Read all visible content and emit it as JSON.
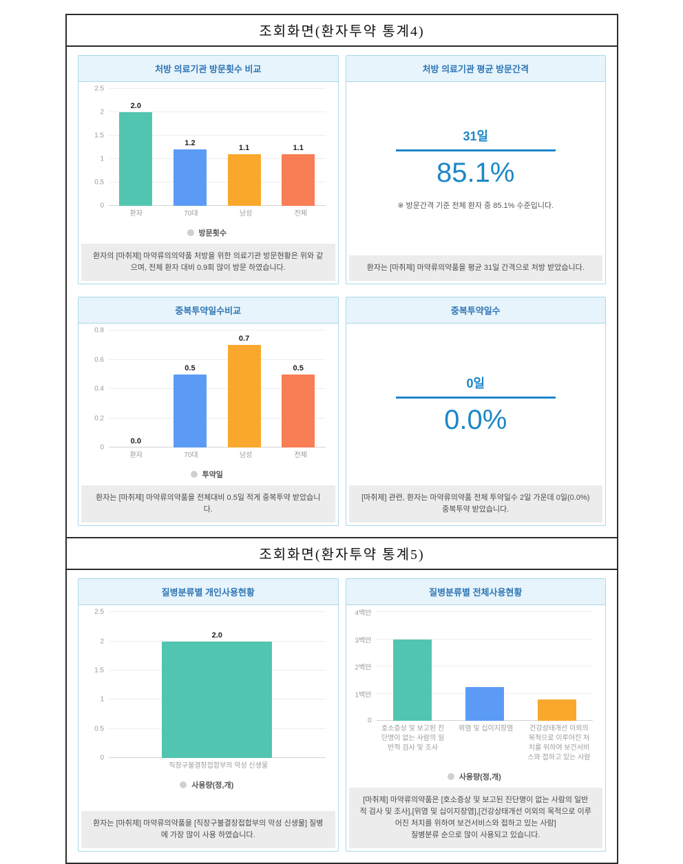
{
  "titles": {
    "section4": "조회화면(환자투약 통계4)",
    "section5": "조회화면(환자투약 통계5)"
  },
  "panels": {
    "visits": {
      "header": "처방 의료기관 방문횟수 비교",
      "legend": "방문횟수",
      "footer": "환자의 [마취제] 마약류의의약품 처방을 위한 의료기관 방문현황은 위와 같으며, 전체 환자 대비 0.9회 많이 방문 하였습니다."
    },
    "interval": {
      "header": "처방 의료기관 평균 방문간격",
      "value_top": "31일",
      "value_main": "85.1%",
      "note": "※ 방문간격 기준 전체 환자 중 85.1% 수준입니다.",
      "footer": "환자는 [마취제] 마약류의약품을 평균 31일 간격으로 처방 받았습니다."
    },
    "dup_compare": {
      "header": "중복투약일수비교",
      "legend": "투약일",
      "footer": "환자는 [마취제] 마약류의약품을 전체대비 0.5일 적게 중복투약 받았습니다."
    },
    "dup_days": {
      "header": "중복투약일수",
      "value_top": "0일",
      "value_main": "0.0%",
      "footer": "[마취제] 관련, 환자는 마약류의약품 전체 투약일수 2일 가운데 0일(0.0%) 중복투약 받았습니다."
    },
    "personal": {
      "header": "질병분류별 개인사용현황",
      "legend": "사용량(정,개)",
      "footer": "환자는 [마취제] 마약류의약품을 [직장구불결장접합부의 악성 신생물] 질병에 가장 많이 사용 하였습니다."
    },
    "total": {
      "header": "질병분류별 전체사용현황",
      "legend": "사용량(정,개)",
      "footer": "[마취제] 마약류의약품은 [호소증상 및 보고된 진단명이 없는 사람의 일반적 검사 및 조사],[위염 및 십이지장염],[건강상태개선 이외의 목적으로 이루어진 처치를 위하여 보건서비스와 접하고 있는 사람]\n질병분류 순으로 많이 사용되고 있습니다."
    }
  },
  "colors": {
    "accent_blue": "#1C86C8",
    "header_text": "#2E75B5",
    "header_bg": "#E7F4FB",
    "panel_border": "#A9D7EA",
    "footer_bg": "#ECECEC",
    "bar_teal": "#52C5B0",
    "bar_blue": "#5B9BF5",
    "bar_orange": "#F9A82D",
    "bar_coral": "#F97D55",
    "legend_dot_gray": "#CFCFCF"
  },
  "chart_data": [
    {
      "id": "visit-count-comparison",
      "type": "bar",
      "title": "처방 의료기관 방문횟수 비교",
      "categories": [
        "환자",
        "70대",
        "남성",
        "전체"
      ],
      "values": [
        2.0,
        1.2,
        1.1,
        1.1
      ],
      "value_labels": [
        "2.0",
        "1.2",
        "1.1",
        "1.1"
      ],
      "bar_colors": [
        "#52C5B0",
        "#5B9BF5",
        "#F9A82D",
        "#F97D55"
      ],
      "ylim": [
        0,
        2.5
      ],
      "yticks": [
        0,
        0.5,
        1,
        1.5,
        2,
        2.5
      ],
      "ytick_labels": [
        "0",
        "0.5",
        "1",
        "1.5",
        "2",
        "2.5"
      ],
      "legend": "방문횟수",
      "legend_position": "bottom",
      "grid": true,
      "show_values": true
    },
    {
      "id": "duplicate-dose-days-comparison",
      "type": "bar",
      "title": "중복투약일수비교",
      "categories": [
        "환자",
        "70대",
        "남성",
        "전체"
      ],
      "values": [
        0.0,
        0.5,
        0.7,
        0.5
      ],
      "value_labels": [
        "0.0",
        "0.5",
        "0.7",
        "0.5"
      ],
      "bar_colors": [
        "#52C5B0",
        "#5B9BF5",
        "#F9A82D",
        "#F97D55"
      ],
      "ylim": [
        0,
        0.8
      ],
      "yticks": [
        0,
        0.2,
        0.4,
        0.6,
        0.8
      ],
      "ytick_labels": [
        "0",
        "0.2",
        "0.4",
        "0.6",
        "0.8"
      ],
      "legend": "투약일",
      "legend_position": "bottom",
      "grid": true,
      "show_values": true
    },
    {
      "id": "disease-personal-usage",
      "type": "bar",
      "title": "질병분류별 개인사용현황",
      "categories": [
        "직장구불결장접합부의 악성 신생물"
      ],
      "values": [
        2.0
      ],
      "value_labels": [
        "2.0"
      ],
      "bar_colors": [
        "#52C5B0"
      ],
      "ylim": [
        0,
        2.5
      ],
      "yticks": [
        0,
        0.5,
        1,
        1.5,
        2,
        2.5
      ],
      "ytick_labels": [
        "0",
        "0.5",
        "1",
        "1.5",
        "2",
        "2.5"
      ],
      "legend": "사용량(정,개)",
      "legend_position": "bottom",
      "grid": true,
      "show_values": true
    },
    {
      "id": "disease-total-usage",
      "type": "bar",
      "title": "질병분류별 전체사용현황",
      "categories": [
        "호소증상 및 보고된 진단명이 없는 사람의 일반적 검사 및 조사",
        "위염 및 십이지장염",
        "건강상태개선 이외의 목적으로 이루어진 처치를 위하여 보건서비스와 접하고 있는 사람"
      ],
      "values": [
        3000000,
        1250000,
        800000
      ],
      "value_labels": [
        "",
        "",
        ""
      ],
      "bar_colors": [
        "#52C5B0",
        "#5B9BF5",
        "#F9A82D"
      ],
      "ylim": [
        0,
        4000000
      ],
      "yticks": [
        0,
        1000000,
        2000000,
        3000000,
        4000000
      ],
      "ytick_labels": [
        "0",
        "1백만",
        "2백만",
        "3백만",
        "4백만"
      ],
      "legend": "사용량(정,개)",
      "legend_position": "bottom",
      "grid": true,
      "show_values": false
    }
  ]
}
